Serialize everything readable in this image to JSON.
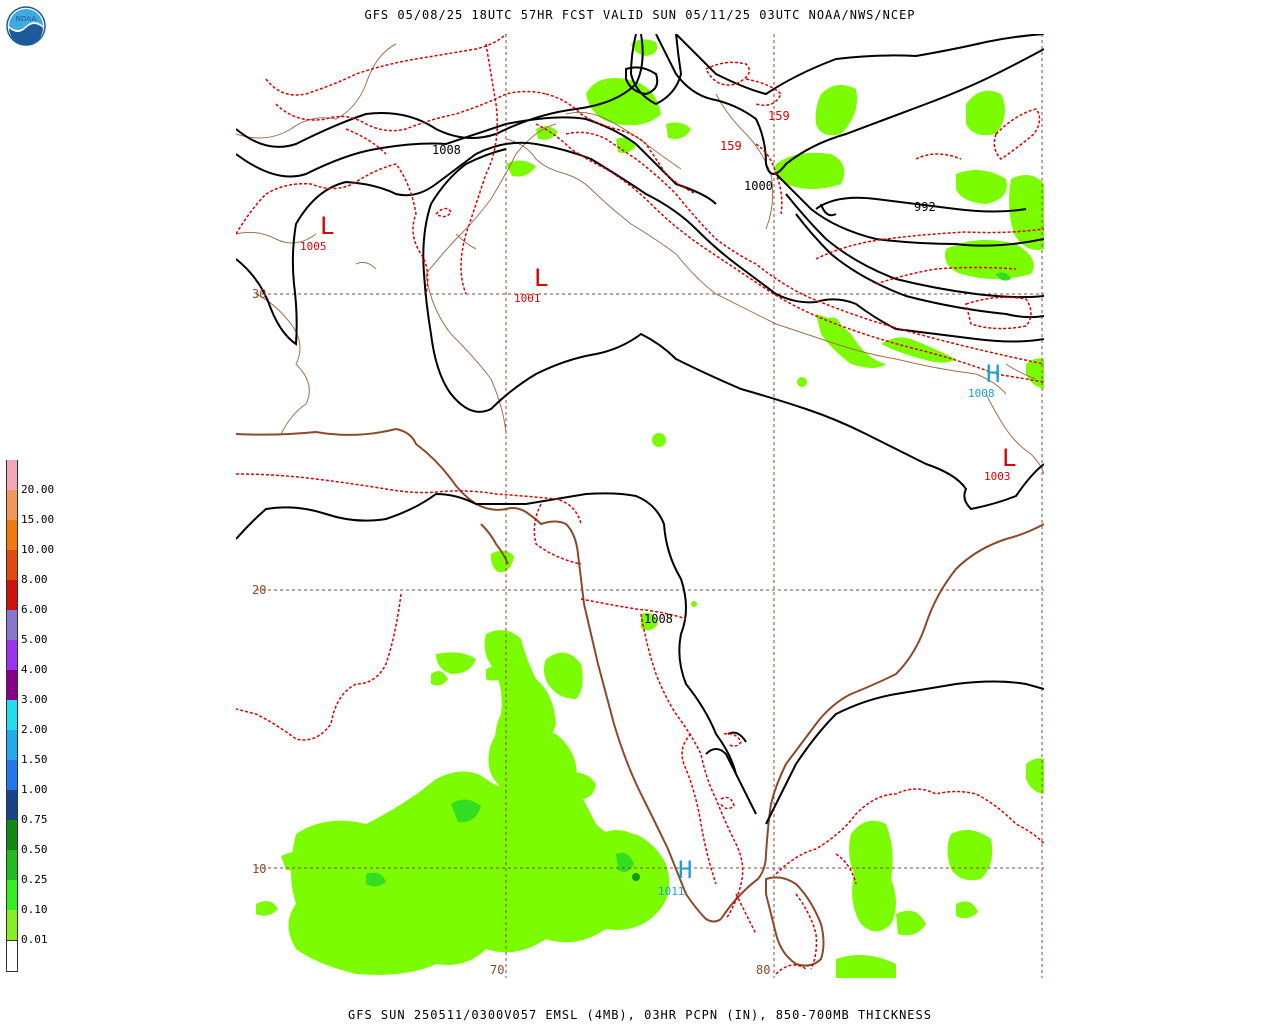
{
  "header": {
    "title": "GFS 05/08/25 18UTC 57HR FCST VALID SUN 05/11/25 03UTC NOAA/NWS/NCEP"
  },
  "footer": {
    "caption": "GFS SUN 250511/0300V057 EMSL (4MB), 03HR PCPN (IN), 850-700MB THICKNESS"
  },
  "logo": {
    "label": "NOAA"
  },
  "map": {
    "latitude_labels": [
      "30",
      "20",
      "10"
    ],
    "longitude_labels": [
      "70",
      "80"
    ],
    "isobar_labels": [
      "1008",
      "1000",
      "992",
      "1008"
    ],
    "thickness_labels": [
      "159",
      "159"
    ],
    "low_centers": [
      {
        "symbol": "L",
        "value": "1005"
      },
      {
        "symbol": "L",
        "value": "1001"
      },
      {
        "symbol": "L",
        "value": "1003"
      }
    ],
    "high_centers": [
      {
        "symbol": "H",
        "value": "1008"
      },
      {
        "symbol": "H",
        "value": "1011"
      }
    ],
    "colors": {
      "isobar": "#000000",
      "thickness": "#dd0000",
      "coastline": "#8b4a2b",
      "borders": "#a0724f",
      "grid": "#8b4a2b",
      "precip_light": "#7cfc00",
      "precip_mid": "#33dd22",
      "precip_heavy": "#119911",
      "low_symbol": "#dd0000",
      "high_symbol": "#1aa0d8"
    }
  },
  "legend": {
    "title": "03HR PCPN (IN)",
    "items": [
      {
        "label": "20.00",
        "color": "#f4a6b4"
      },
      {
        "label": "15.00",
        "color": "#f0985a"
      },
      {
        "label": "10.00",
        "color": "#f07a10"
      },
      {
        "label": "8.00",
        "color": "#e04b10"
      },
      {
        "label": "6.00",
        "color": "#cc1111"
      },
      {
        "label": "5.00",
        "color": "#8877cc"
      },
      {
        "label": "4.00",
        "color": "#9933ee"
      },
      {
        "label": "3.00",
        "color": "#880088"
      },
      {
        "label": "2.00",
        "color": "#22ddee"
      },
      {
        "label": "1.50",
        "color": "#22aaee"
      },
      {
        "label": "1.00",
        "color": "#2277ee"
      },
      {
        "label": "0.75",
        "color": "#184488"
      },
      {
        "label": "0.50",
        "color": "#118811"
      },
      {
        "label": "0.25",
        "color": "#22bb22"
      },
      {
        "label": "0.10",
        "color": "#33ee22"
      },
      {
        "label": "0.01",
        "color": "#88ee22"
      }
    ]
  }
}
